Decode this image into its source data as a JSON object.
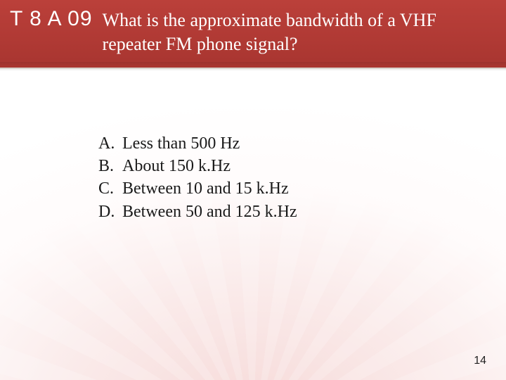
{
  "colors": {
    "header_bg_top": "#bb403a",
    "header_bg_bottom": "#a83530",
    "header_text": "#ffffff",
    "body_text": "#1a1a1a",
    "page_bg": "#ffffff",
    "sunburst_tint": "#ce312a"
  },
  "typography": {
    "question_number_font": "Arial",
    "question_number_size_pt": 22,
    "question_text_font": "Times New Roman",
    "question_text_size_pt": 20,
    "answer_text_size_pt": 18,
    "pagenum_size_pt": 12
  },
  "question": {
    "number": "T 8 A 09",
    "text": "What is the approximate bandwidth of a VHF repeater FM phone signal?"
  },
  "answers": [
    {
      "letter": "A.",
      "text": "Less than 500 Hz"
    },
    {
      "letter": "B.",
      "text": "About 150 k.Hz"
    },
    {
      "letter": "C.",
      "text": "Between 10 and 15 k.Hz"
    },
    {
      "letter": "D.",
      "text": "Between 50 and 125 k.Hz"
    }
  ],
  "page_number": "14"
}
